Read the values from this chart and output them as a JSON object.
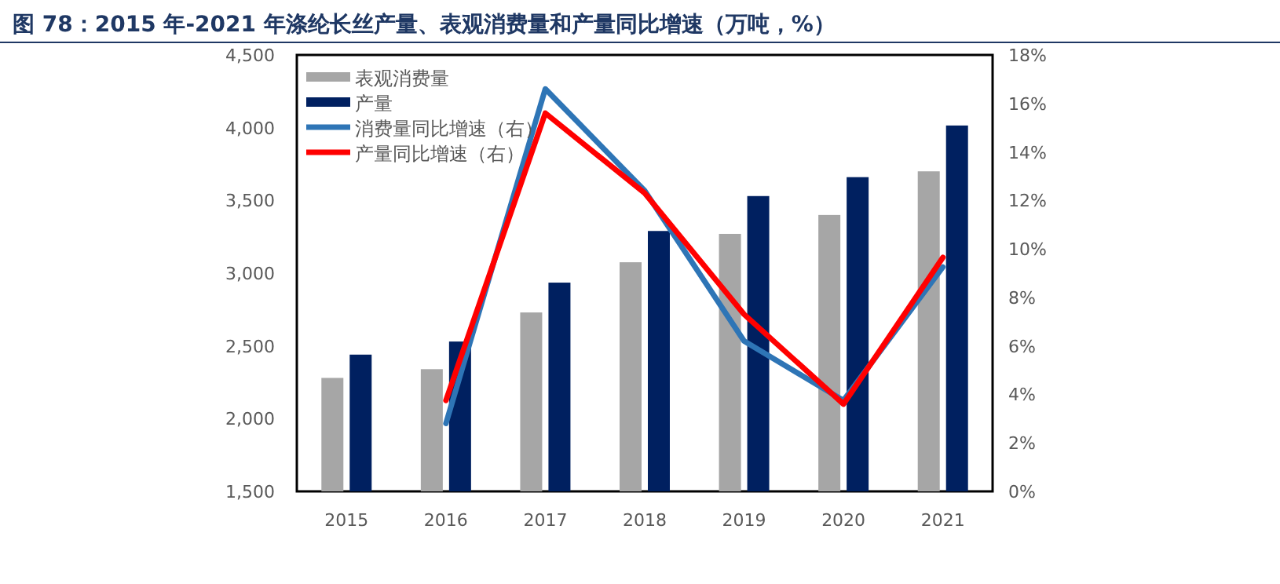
{
  "chart_data": {
    "type": "bar",
    "title": "图 78：2015 年-2021 年涤纶长丝产量、表观消费量和产量同比增速（万吨，%）",
    "categories": [
      "2015",
      "2016",
      "2017",
      "2018",
      "2019",
      "2020",
      "2021"
    ],
    "series": [
      {
        "name": "表观消费量",
        "color": "#a6a6a6",
        "values": [
          2280,
          2340,
          2730,
          3075,
          3270,
          3400,
          3700
        ]
      },
      {
        "name": "产量",
        "color": "#002060",
        "values": [
          2440,
          2530,
          2935,
          3290,
          3530,
          3660,
          4015
        ]
      },
      {
        "name": "消费量同比增速（右）",
        "type": "line",
        "axis": "y2",
        "color": "#2e75b6",
        "values": [
          null,
          2.8,
          16.6,
          12.4,
          6.2,
          3.75,
          9.25
        ]
      },
      {
        "name": "产量同比增速（右）",
        "type": "line",
        "axis": "y2",
        "color": "#ff0000",
        "values": [
          null,
          3.75,
          15.6,
          12.3,
          7.3,
          3.6,
          9.65
        ]
      }
    ],
    "ylim": [
      1500,
      4500
    ],
    "yticks": [
      {
        "value": 1500,
        "label": "1,500"
      },
      {
        "value": 2000,
        "label": "2,000"
      },
      {
        "value": 2500,
        "label": "2,500"
      },
      {
        "value": 3000,
        "label": "3,000"
      },
      {
        "value": 3500,
        "label": "3,500"
      },
      {
        "value": 4000,
        "label": "4,000"
      },
      {
        "value": 4500,
        "label": "4,500"
      }
    ],
    "y2lim": [
      0,
      18
    ],
    "y2ticks": [
      {
        "value": 0,
        "label": "0%"
      },
      {
        "value": 2,
        "label": "2%"
      },
      {
        "value": 4,
        "label": "4%"
      },
      {
        "value": 6,
        "label": "6%"
      },
      {
        "value": 8,
        "label": "8%"
      },
      {
        "value": 10,
        "label": "10%"
      },
      {
        "value": 12,
        "label": "12%"
      },
      {
        "value": 14,
        "label": "14%"
      },
      {
        "value": 16,
        "label": "16%"
      },
      {
        "value": 18,
        "label": "18%"
      }
    ],
    "legend": "top left",
    "grid": false
  }
}
